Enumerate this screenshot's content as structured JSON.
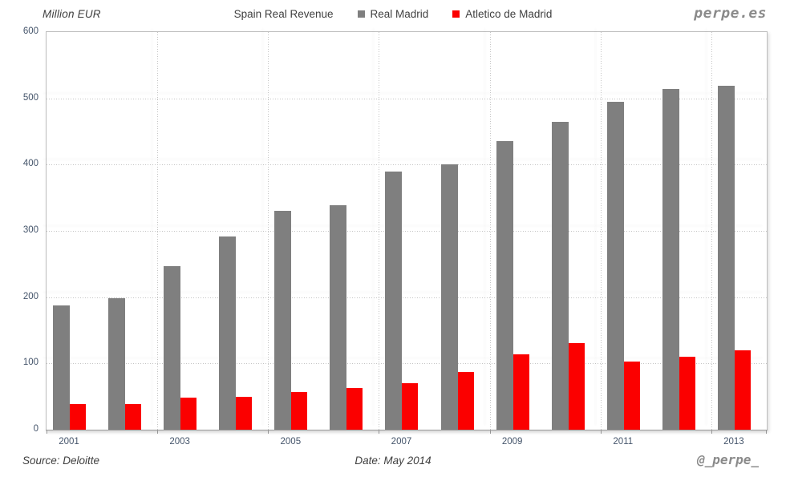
{
  "header": {
    "y_axis_unit": "Million EUR",
    "brand": "perpe.es"
  },
  "chart_data": {
    "type": "bar",
    "title": "Spain Real Revenue",
    "categories": [
      "2001",
      "2002",
      "2003",
      "2004",
      "2005",
      "2006",
      "2007",
      "2008",
      "2009",
      "2010",
      "2011",
      "2012",
      "2013"
    ],
    "x_tick_labels": [
      "2001",
      "2003",
      "2005",
      "2007",
      "2009",
      "2011",
      "2013"
    ],
    "series": [
      {
        "name": "Real Madrid",
        "color": "#7f7f7f",
        "values": [
          187,
          199,
          247,
          292,
          330,
          339,
          390,
          400,
          436,
          464,
          495,
          514,
          519
        ]
      },
      {
        "name": "Atletico de Madrid",
        "color": "#fb0000",
        "values": [
          39,
          39,
          49,
          50,
          57,
          63,
          70,
          87,
          114,
          131,
          103,
          110,
          120
        ]
      }
    ],
    "ylabel": "Million EUR",
    "ylim": [
      0,
      600
    ],
    "y_ticks": [
      0,
      100,
      200,
      300,
      400,
      500,
      600
    ],
    "grid": "horizontal dotted lines every 100; vertical dotted lines every 2 years",
    "legend_position": "top"
  },
  "footer": {
    "source": "Source: Deloitte",
    "date": "Date: May 2014",
    "handle": "@_perpe_"
  }
}
